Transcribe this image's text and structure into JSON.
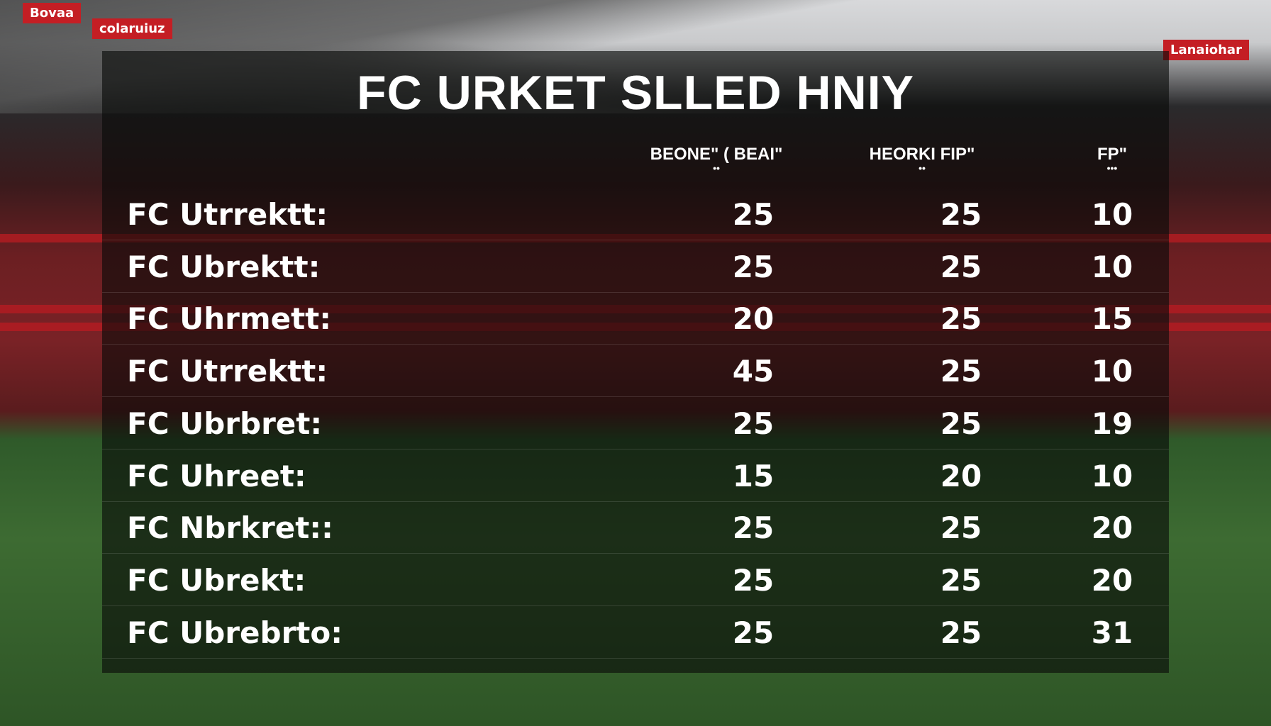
{
  "title": "FC URKET SLLED HNIY",
  "banners": [
    "Bovaa",
    "colaruiuz",
    "Lanaiohar"
  ],
  "columns": [
    {
      "label": "BEONE\" ( BEAI\"",
      "sub": "••"
    },
    {
      "label": "HEORKI FIP\"",
      "sub": "••"
    },
    {
      "label": "FP\"",
      "sub": "•••"
    }
  ],
  "rows": [
    {
      "name": "FC Utrrektt:",
      "values": [
        "25",
        "25",
        "10"
      ]
    },
    {
      "name": "FC Ubrektt:",
      "values": [
        "25",
        "25",
        "10"
      ]
    },
    {
      "name": "FC Uhrmett:",
      "values": [
        "20",
        "25",
        "15"
      ]
    },
    {
      "name": "FC Utrrektt:",
      "values": [
        "45",
        "25",
        "10"
      ]
    },
    {
      "name": "FC Ubrbret:",
      "values": [
        "25",
        "25",
        "19"
      ]
    },
    {
      "name": "FC Uhreet:",
      "values": [
        "15",
        "20",
        "10"
      ]
    },
    {
      "name": "FC Nbrkret::",
      "values": [
        "25",
        "25",
        "20"
      ]
    },
    {
      "name": "FC Ubrekt:",
      "values": [
        "25",
        "25",
        "20"
      ]
    },
    {
      "name": "FC Ubrebrto:",
      "values": [
        "25",
        "25",
        "31"
      ]
    }
  ],
  "colors": {
    "accent_red": "#c41e24",
    "pitch_green": "#3d6b32",
    "text": "#ffffff"
  }
}
